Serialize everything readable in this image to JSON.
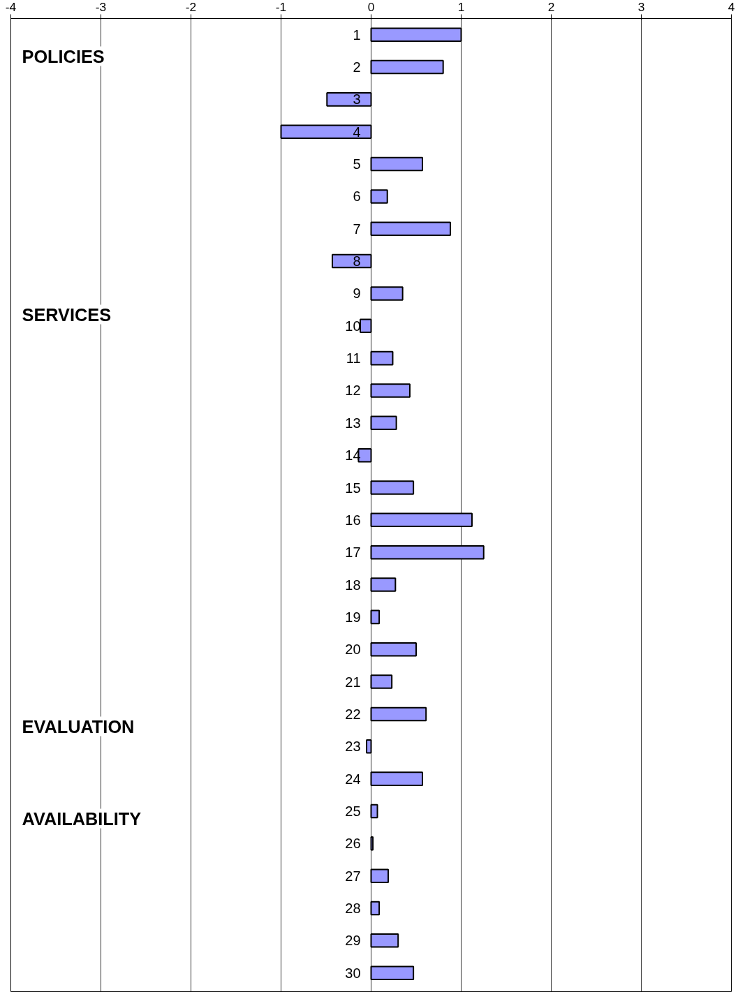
{
  "chart_data": {
    "type": "bar",
    "orientation": "horizontal",
    "categories": [
      "1",
      "2",
      "3",
      "4",
      "5",
      "6",
      "7",
      "8",
      "9",
      "10",
      "11",
      "12",
      "13",
      "14",
      "15",
      "16",
      "17",
      "18",
      "19",
      "20",
      "21",
      "22",
      "23",
      "24",
      "25",
      "26",
      "27",
      "28",
      "29",
      "30"
    ],
    "values": [
      1.0,
      0.8,
      -0.49,
      -1.0,
      0.57,
      0.18,
      0.88,
      -0.43,
      0.35,
      -0.12,
      0.24,
      0.43,
      0.28,
      -0.14,
      0.47,
      1.12,
      1.25,
      0.27,
      0.09,
      0.5,
      0.23,
      0.61,
      -0.05,
      0.57,
      0.07,
      0.02,
      0.19,
      0.09,
      0.3,
      0.47
    ],
    "color": "#9999ff",
    "xlim": [
      -4,
      4
    ],
    "xticks": [
      -4,
      -3,
      -2,
      -1,
      0,
      1,
      2,
      3,
      4
    ],
    "grid": "x",
    "annotations": [
      "POLICIES",
      "SERVICES",
      "EVALUATION",
      "AVAILABILITY"
    ]
  }
}
